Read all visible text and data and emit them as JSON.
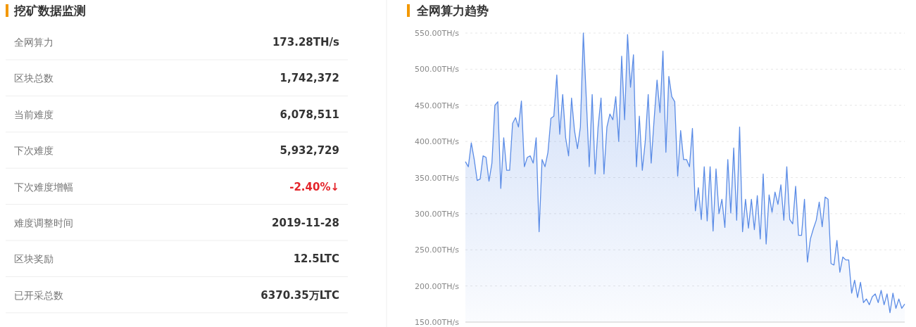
{
  "chart_data": [
    {
      "type": "other",
      "title": "挖矿数据监测",
      "annotations": [
        "全网算力",
        "173.28TH/s",
        "区块总数",
        "1,742,372",
        "当前难度",
        "6,078,511",
        "下次难度",
        "5,932,729",
        "下次难度增幅",
        "-2.40%↓",
        "难度调整时间",
        "2019-11-28",
        "区块奖励",
        "12.5LTC",
        "已开采总数",
        "6370.35万LTC"
      ],
      "colors": [
        "#333333",
        "#333333",
        "#333333",
        "#333333",
        "#e4252b",
        "#333333",
        "#333333",
        "#333333"
      ]
    },
    {
      "type": "area",
      "title": "全网算力趋势",
      "color": "#5b8ce6",
      "grid": "y",
      "ylim": [
        150,
        550
      ],
      "yticks": [
        {
          "value": 150,
          "label": "150.00TH/s"
        },
        {
          "value": 200,
          "label": "200.00TH/s"
        },
        {
          "value": 250,
          "label": "250.00TH/s"
        },
        {
          "value": 300,
          "label": "300.00TH/s"
        },
        {
          "value": 350,
          "label": "350.00TH/s"
        },
        {
          "value": 400,
          "label": "400.00TH/s"
        },
        {
          "value": 450,
          "label": "450.00TH/s"
        },
        {
          "value": 500,
          "label": "500.00TH/s"
        },
        {
          "value": 550,
          "label": "550.00TH/s"
        }
      ],
      "values": [
        372,
        365,
        398,
        375,
        346,
        348,
        380,
        378,
        345,
        370,
        450,
        455,
        335,
        405,
        360,
        360,
        425,
        433,
        420,
        456,
        365,
        378,
        380,
        370,
        405,
        275,
        375,
        365,
        385,
        432,
        435,
        492,
        410,
        465,
        405,
        380,
        460,
        415,
        390,
        420,
        550,
        460,
        365,
        465,
        355,
        420,
        460,
        355,
        420,
        438,
        430,
        462,
        400,
        518,
        430,
        548,
        475,
        520,
        365,
        435,
        360,
        400,
        465,
        370,
        430,
        485,
        440,
        525,
        385,
        490,
        462,
        455,
        352,
        415,
        375,
        375,
        365,
        418,
        304,
        336,
        292,
        365,
        290,
        365,
        276,
        362,
        300,
        320,
        281,
        375,
        301,
        391,
        291,
        420,
        275,
        320,
        280,
        320,
        278,
        325,
        265,
        355,
        258,
        326,
        302,
        330,
        313,
        340,
        291,
        365,
        292,
        286,
        338,
        270,
        270,
        320,
        233,
        265,
        279,
        291,
        316,
        282,
        323,
        320,
        231,
        229,
        263,
        219,
        240,
        236,
        236,
        190,
        208,
        184,
        205,
        177,
        182,
        174,
        185,
        189,
        177,
        194,
        174,
        189,
        163,
        190,
        169,
        182,
        169,
        175
      ]
    }
  ]
}
